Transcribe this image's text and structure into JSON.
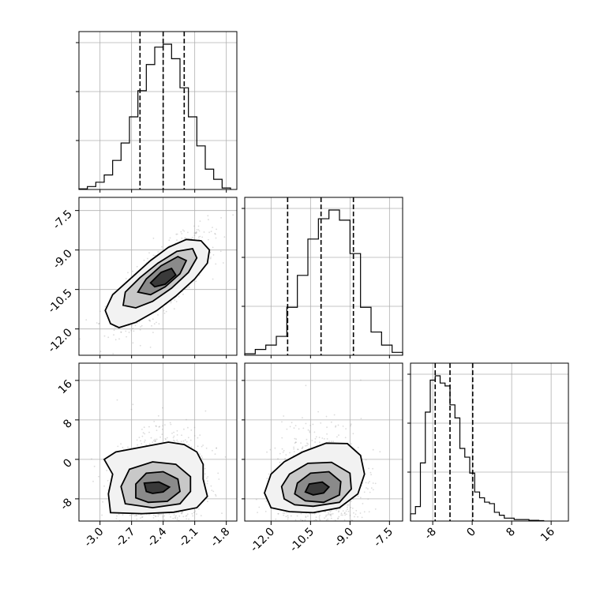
{
  "chart_data": {
    "type": "corner",
    "title": "",
    "parameters": [
      {
        "label": "",
        "range": [
          -3.2,
          -1.7
        ],
        "ticks": [
          "-3.0",
          "-2.7",
          "-2.4",
          "-2.1",
          "-1.8"
        ],
        "tick_values": [
          -3.0,
          -2.7,
          -2.4,
          -2.1,
          -1.8
        ]
      },
      {
        "label": "",
        "range": [
          -13.0,
          -7.0
        ],
        "ticks": [
          "-12.0",
          "-10.5",
          "-9.0",
          "-7.5"
        ],
        "tick_values": [
          -12.0,
          -10.5,
          -9.0,
          -7.5
        ]
      },
      {
        "label": "",
        "range": [
          -12.5,
          19.5
        ],
        "ticks": [
          "-8",
          "0",
          "8",
          "16"
        ],
        "tick_values": [
          -8,
          0,
          8,
          16
        ]
      }
    ],
    "marginals": [
      {
        "param": 0,
        "quantiles": [
          -2.62,
          -2.4,
          -2.2
        ],
        "bins": [
          -3.2,
          -3.12,
          -3.04,
          -2.96,
          -2.88,
          -2.8,
          -2.72,
          -2.64,
          -2.56,
          -2.48,
          -2.4,
          -2.32,
          -2.24,
          -2.16,
          -2.08,
          -2.0,
          -1.92,
          -1.84,
          -1.76
        ],
        "counts": [
          0.004,
          0.02,
          0.05,
          0.1,
          0.2,
          0.32,
          0.5,
          0.68,
          0.86,
          0.98,
          1.0,
          0.9,
          0.7,
          0.5,
          0.3,
          0.14,
          0.07,
          0.01
        ]
      },
      {
        "param": 1,
        "quantiles": [
          -11.37,
          -10.1,
          -8.87
        ],
        "bins": [
          -13.0,
          -12.6,
          -12.2,
          -11.8,
          -11.4,
          -11.0,
          -10.6,
          -10.2,
          -9.8,
          -9.4,
          -9.0,
          -8.6,
          -8.2,
          -7.8,
          -7.4,
          -7.0
        ],
        "counts": [
          0.01,
          0.04,
          0.07,
          0.13,
          0.33,
          0.55,
          0.8,
          0.94,
          1.0,
          0.93,
          0.7,
          0.33,
          0.16,
          0.07,
          0.02
        ]
      },
      {
        "param": 2,
        "quantiles": [
          -7.5,
          -4.5,
          0.1
        ],
        "bins": [
          -12.5,
          -11.5,
          -10.5,
          -9.5,
          -8.5,
          -7.5,
          -6.5,
          -5.5,
          -4.5,
          -3.5,
          -2.5,
          -1.5,
          -0.5,
          0.5,
          1.5,
          2.5,
          3.5,
          4.5,
          5.5,
          6.5,
          7.5,
          8.5,
          9.5,
          10.5,
          11.5,
          12.5,
          13.5,
          14.5
        ],
        "counts": [
          0.05,
          0.1,
          0.4,
          0.75,
          0.97,
          1.0,
          0.95,
          0.93,
          0.8,
          0.71,
          0.5,
          0.44,
          0.33,
          0.2,
          0.16,
          0.13,
          0.12,
          0.06,
          0.04,
          0.02,
          0.02,
          0.01,
          0.01,
          0.01,
          0.005,
          0.005,
          0.003
        ]
      }
    ],
    "joint": [
      {
        "x_param": 0,
        "y_param": 1,
        "peak": [
          -2.4,
          -10.1
        ],
        "contours": [
          [
            [
              -2.9,
              -11.8
            ],
            [
              -2.95,
              -11.3
            ],
            [
              -2.88,
              -10.7
            ],
            [
              -2.7,
              -10.05
            ],
            [
              -2.52,
              -9.4
            ],
            [
              -2.35,
              -8.9
            ],
            [
              -2.18,
              -8.6
            ],
            [
              -2.04,
              -8.65
            ],
            [
              -1.96,
              -9.0
            ],
            [
              -1.98,
              -9.5
            ],
            [
              -2.1,
              -10.1
            ],
            [
              -2.28,
              -10.75
            ],
            [
              -2.46,
              -11.3
            ],
            [
              -2.66,
              -11.75
            ],
            [
              -2.82,
              -11.95
            ]
          ],
          [
            [
              -2.78,
              -11.1
            ],
            [
              -2.76,
              -10.6
            ],
            [
              -2.62,
              -10.05
            ],
            [
              -2.45,
              -9.5
            ],
            [
              -2.27,
              -9.05
            ],
            [
              -2.12,
              -8.95
            ],
            [
              -2.08,
              -9.3
            ],
            [
              -2.16,
              -9.85
            ],
            [
              -2.32,
              -10.45
            ],
            [
              -2.5,
              -10.95
            ],
            [
              -2.66,
              -11.2
            ]
          ],
          [
            [
              -2.64,
              -10.6
            ],
            [
              -2.56,
              -10.1
            ],
            [
              -2.42,
              -9.6
            ],
            [
              -2.26,
              -9.25
            ],
            [
              -2.18,
              -9.4
            ],
            [
              -2.24,
              -9.9
            ],
            [
              -2.38,
              -10.4
            ],
            [
              -2.52,
              -10.7
            ]
          ],
          [
            [
              -2.52,
              -10.25
            ],
            [
              -2.42,
              -9.85
            ],
            [
              -2.32,
              -9.7
            ],
            [
              -2.28,
              -9.95
            ],
            [
              -2.38,
              -10.3
            ],
            [
              -2.48,
              -10.4
            ]
          ]
        ]
      },
      {
        "x_param": 0,
        "y_param": 2,
        "peak": [
          -2.42,
          -5.0
        ],
        "contours": [
          [
            [
              -2.9,
              -10.8
            ],
            [
              -2.92,
              -7.0
            ],
            [
              -2.88,
              -3.0
            ],
            [
              -2.96,
              0.0
            ],
            [
              -2.85,
              1.5
            ],
            [
              -2.6,
              2.5
            ],
            [
              -2.35,
              3.5
            ],
            [
              -2.2,
              3.0
            ],
            [
              -2.08,
              1.5
            ],
            [
              -2.02,
              -1.0
            ],
            [
              -2.02,
              -4.0
            ],
            [
              -1.98,
              -7.5
            ],
            [
              -2.08,
              -9.8
            ],
            [
              -2.3,
              -10.7
            ],
            [
              -2.6,
              -11.0
            ]
          ],
          [
            [
              -2.76,
              -9.0
            ],
            [
              -2.8,
              -5.5
            ],
            [
              -2.72,
              -2.0
            ],
            [
              -2.5,
              -0.5
            ],
            [
              -2.28,
              -1.0
            ],
            [
              -2.14,
              -3.5
            ],
            [
              -2.14,
              -6.5
            ],
            [
              -2.24,
              -9.0
            ],
            [
              -2.5,
              -9.8
            ]
          ],
          [
            [
              -2.66,
              -7.8
            ],
            [
              -2.66,
              -5.0
            ],
            [
              -2.56,
              -2.8
            ],
            [
              -2.4,
              -2.5
            ],
            [
              -2.26,
              -4.0
            ],
            [
              -2.24,
              -6.5
            ],
            [
              -2.36,
              -8.5
            ],
            [
              -2.54,
              -8.7
            ]
          ],
          [
            [
              -2.56,
              -6.5
            ],
            [
              -2.58,
              -4.8
            ],
            [
              -2.44,
              -4.6
            ],
            [
              -2.34,
              -5.6
            ],
            [
              -2.4,
              -6.6
            ],
            [
              -2.5,
              -6.9
            ]
          ]
        ]
      },
      {
        "x_param": 1,
        "y_param": 2,
        "peak": [
          -10.2,
          -5.5
        ],
        "contours": [
          [
            [
              -12.0,
              -9.8
            ],
            [
              -12.25,
              -6.8
            ],
            [
              -12.0,
              -3.0
            ],
            [
              -11.5,
              -0.5
            ],
            [
              -10.8,
              1.5
            ],
            [
              -9.9,
              3.3
            ],
            [
              -9.1,
              3.2
            ],
            [
              -8.6,
              0.8
            ],
            [
              -8.45,
              -3.0
            ],
            [
              -8.7,
              -7.0
            ],
            [
              -9.4,
              -9.8
            ],
            [
              -10.4,
              -10.8
            ],
            [
              -11.3,
              -10.6
            ]
          ],
          [
            [
              -11.5,
              -8.0
            ],
            [
              -11.6,
              -5.5
            ],
            [
              -11.3,
              -3.0
            ],
            [
              -10.6,
              -0.8
            ],
            [
              -9.7,
              -0.6
            ],
            [
              -9.0,
              -2.8
            ],
            [
              -8.95,
              -6.0
            ],
            [
              -9.4,
              -8.7
            ],
            [
              -10.4,
              -9.5
            ],
            [
              -11.1,
              -9.2
            ]
          ],
          [
            [
              -11.1,
              -7.0
            ],
            [
              -11.0,
              -4.8
            ],
            [
              -10.5,
              -2.8
            ],
            [
              -9.8,
              -2.5
            ],
            [
              -9.35,
              -4.5
            ],
            [
              -9.4,
              -7.2
            ],
            [
              -10.0,
              -8.7
            ],
            [
              -10.7,
              -8.4
            ]
          ],
          [
            [
              -10.7,
              -6.6
            ],
            [
              -10.55,
              -5.0
            ],
            [
              -10.05,
              -4.6
            ],
            [
              -9.8,
              -5.6
            ],
            [
              -10.0,
              -6.8
            ],
            [
              -10.4,
              -7.2
            ]
          ]
        ]
      }
    ]
  }
}
